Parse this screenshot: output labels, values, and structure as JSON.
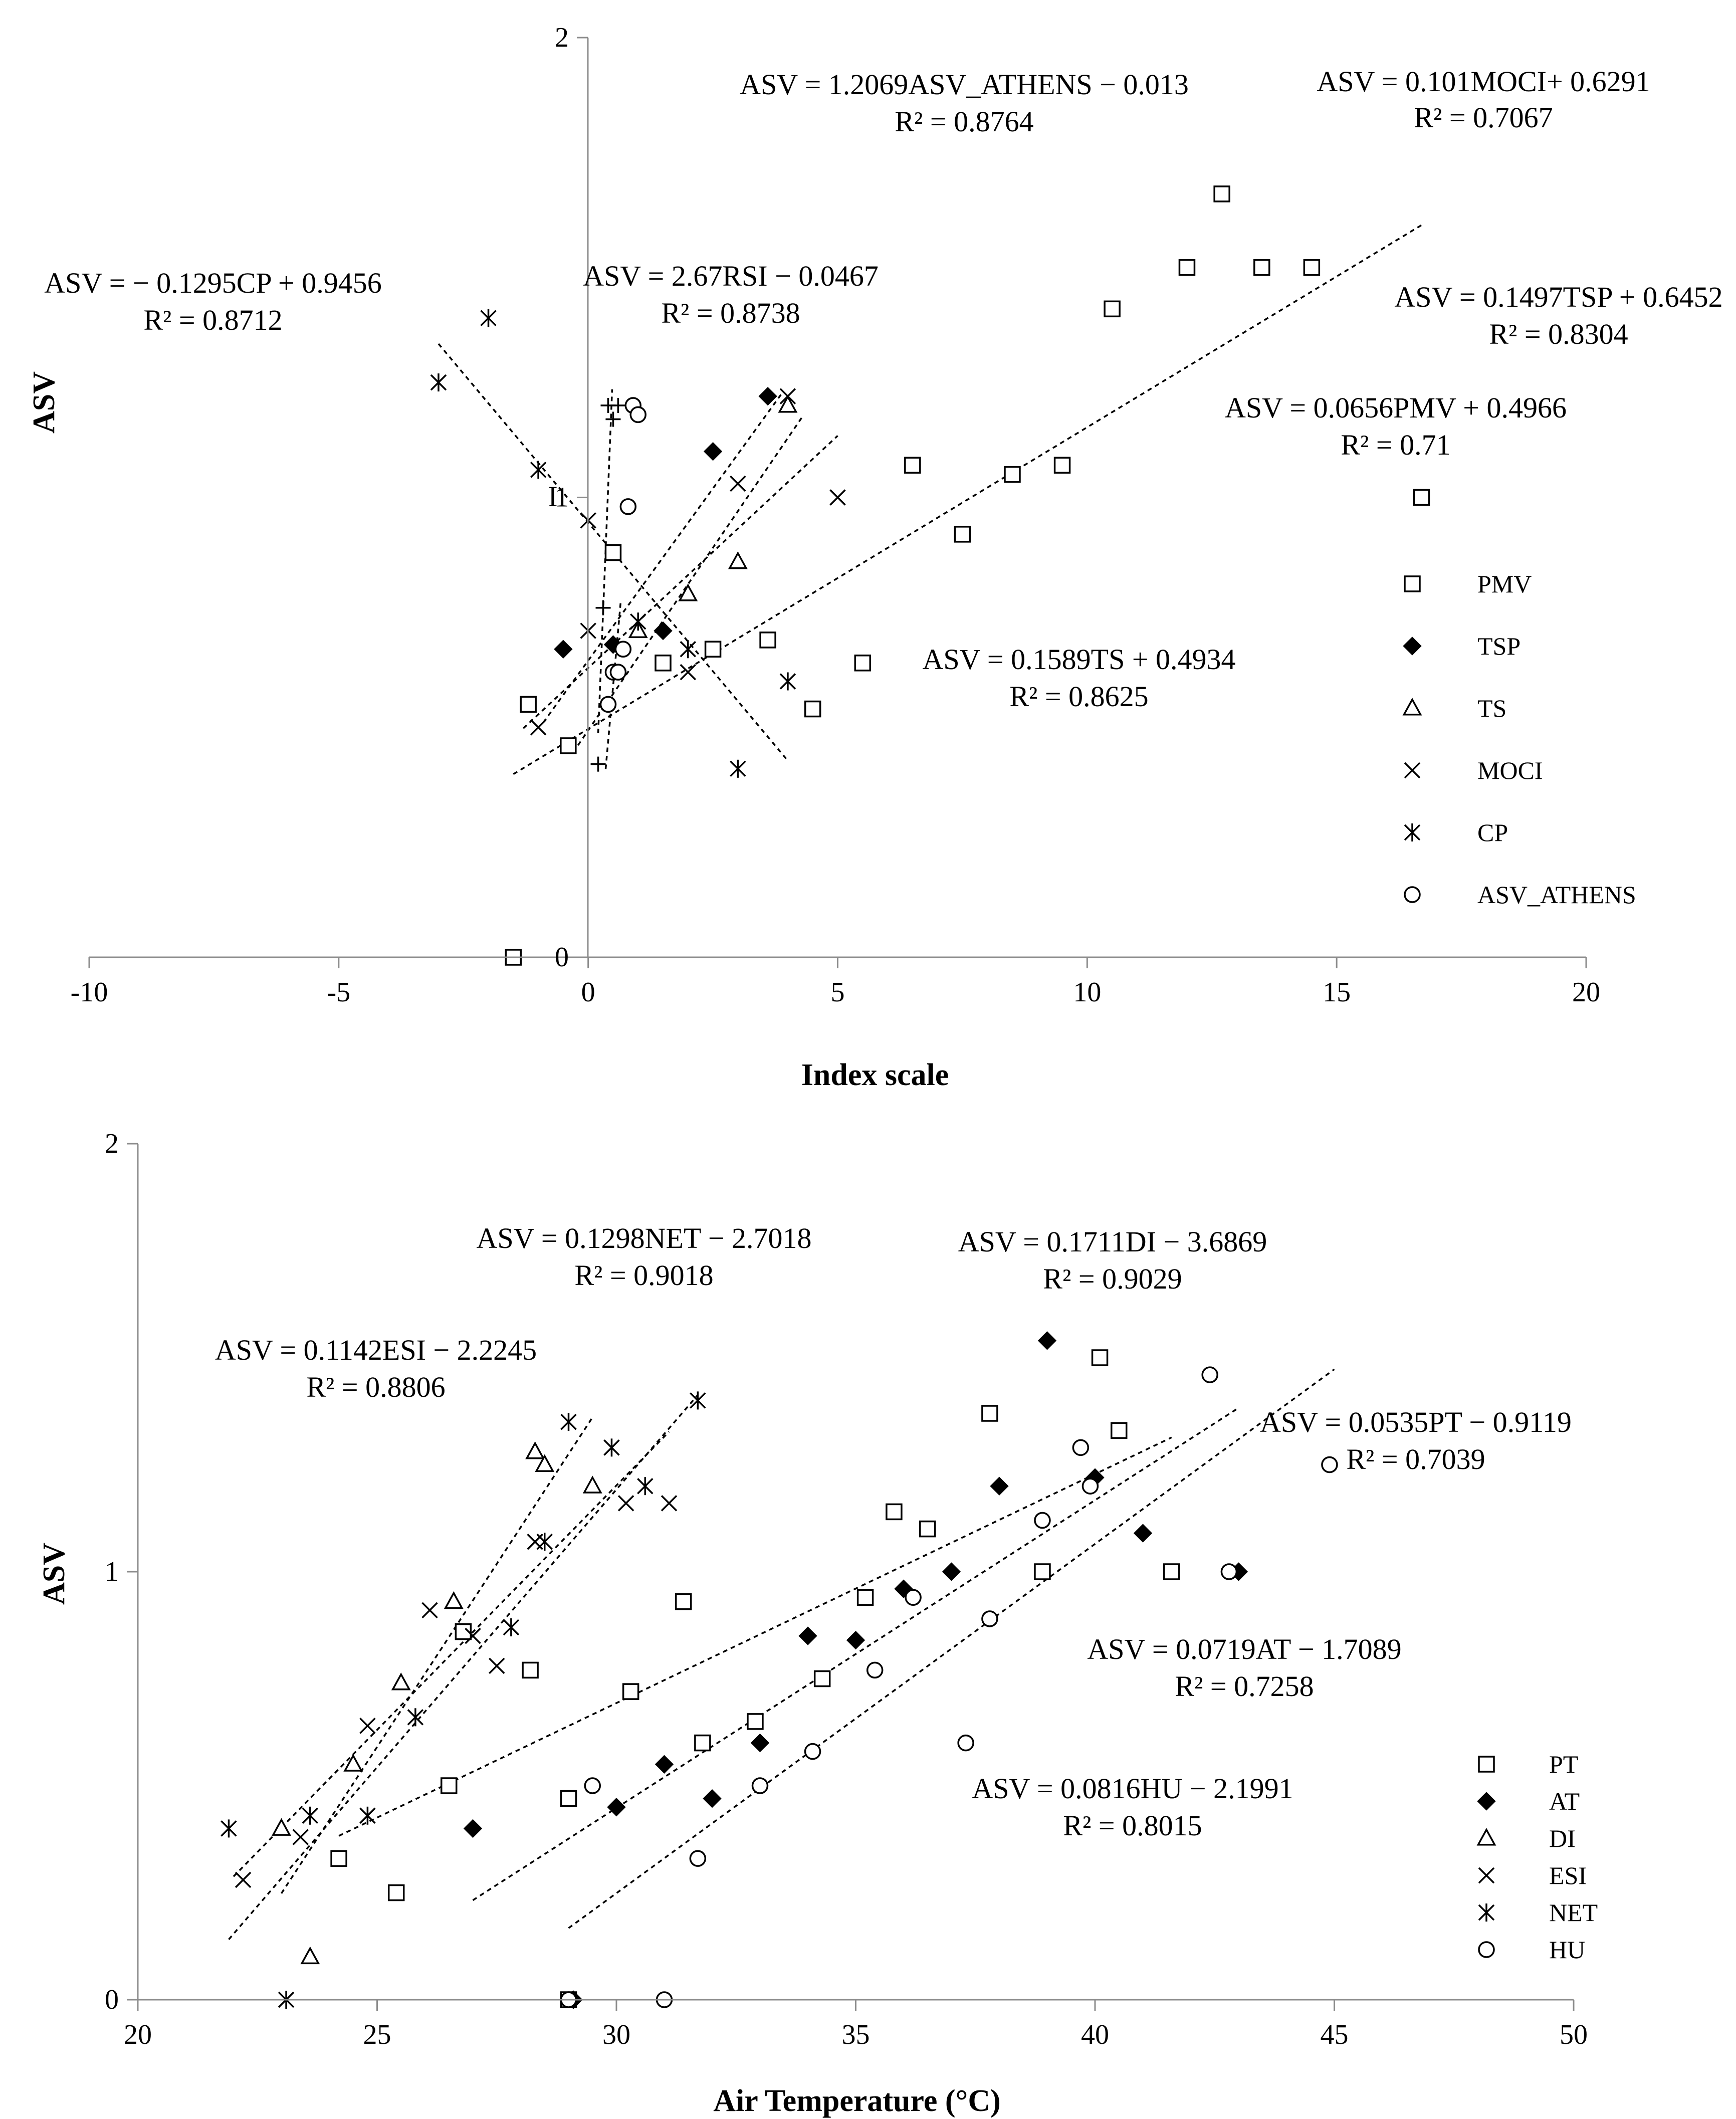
{
  "chart_data": [
    {
      "type": "scatter",
      "title": "",
      "xlabel": "Index scale",
      "ylabel": "ASV",
      "xlim": [
        -10,
        20
      ],
      "ylim": [
        0,
        2
      ],
      "xticks": [
        "-10",
        "-5",
        "0",
        "5",
        "10",
        "15",
        "20"
      ],
      "yticks": [
        "0",
        "1",
        "2"
      ],
      "legend_position": "right",
      "series": [
        {
          "name": "PMV",
          "marker": "square",
          "points": [
            [
              -1.5,
              0
            ],
            [
              -1.2,
              0.55
            ],
            [
              -0.4,
              0.46
            ],
            [
              0.5,
              0.88
            ],
            [
              1.5,
              0.64
            ],
            [
              2.5,
              0.67
            ],
            [
              3.6,
              0.69
            ],
            [
              4.5,
              0.54
            ],
            [
              5.5,
              0.64
            ],
            [
              6.5,
              1.07
            ],
            [
              7.5,
              0.92
            ],
            [
              8.5,
              1.05
            ],
            [
              9.5,
              1.07
            ],
            [
              10.5,
              1.41
            ],
            [
              12,
              1.5
            ],
            [
              12.7,
              1.66
            ],
            [
              13.5,
              1.5
            ],
            [
              14.5,
              1.5
            ],
            [
              16.7,
              1.0
            ]
          ]
        },
        {
          "name": "TSP",
          "marker": "diamond",
          "points": [
            [
              -0.5,
              0.67
            ],
            [
              0.5,
              0.68
            ],
            [
              1.5,
              0.71
            ],
            [
              2.5,
              1.1
            ],
            [
              3.6,
              1.22
            ]
          ]
        },
        {
          "name": "TS",
          "marker": "triangle",
          "points": [
            [
              1,
              0.71
            ],
            [
              2,
              0.79
            ],
            [
              3,
              0.86
            ],
            [
              4,
              1.2
            ]
          ]
        },
        {
          "name": "MOCI",
          "marker": "x",
          "points": [
            [
              -1,
              0.5
            ],
            [
              0,
              0.71
            ],
            [
              0,
              0.95
            ],
            [
              2,
              0.62
            ],
            [
              3,
              1.03
            ],
            [
              4,
              1.22
            ],
            [
              5,
              1.0
            ]
          ]
        },
        {
          "name": "CP",
          "marker": "asterisk",
          "points": [
            [
              -3,
              1.25
            ],
            [
              -2,
              1.39
            ],
            [
              -1,
              1.06
            ],
            [
              1,
              0.73
            ],
            [
              2,
              0.67
            ],
            [
              3,
              0.41
            ],
            [
              4,
              0.6
            ]
          ]
        },
        {
          "name": "ASV_ATHENS",
          "marker": "circle",
          "points": [
            [
              0.4,
              0.55
            ],
            [
              0.5,
              0.62
            ],
            [
              0.6,
              0.62
            ],
            [
              0.7,
              0.67
            ],
            [
              0.8,
              0.98
            ],
            [
              0.9,
              1.2
            ],
            [
              1.0,
              1.18
            ]
          ]
        }
      ],
      "extra_points": {
        "marker": "plus",
        "points": [
          [
            0.2,
            0.42
          ],
          [
            0.3,
            0.76
          ],
          [
            0.4,
            1.2
          ],
          [
            0.5,
            1.17
          ],
          [
            0.6,
            1.2
          ]
        ]
      },
      "trendlines": [
        {
          "series": "PMV",
          "equation": "ASV = 0.0656PMV + 0.4966",
          "r2": "R² = 0.71",
          "x_range": [
            -1.5,
            16.7
          ]
        },
        {
          "series": "TSP",
          "equation": "ASV = 0.1497TSP + 0.6452",
          "r2": "R² = 0.8304",
          "x_range": [
            -0.9,
            3.9
          ]
        },
        {
          "series": "TS",
          "equation": "ASV = 0.1589TS + 0.4934",
          "r2": "R² = 0.8625",
          "x_range": [
            -0.3,
            4.3
          ]
        },
        {
          "series": "MOCI",
          "equation": "ASV = 0.101MOCI+ 0.6291",
          "r2": "R² = 0.7067",
          "x_range": [
            -1.3,
            5
          ]
        },
        {
          "series": "CP",
          "equation": "ASV = − 0.1295CP + 0.9456",
          "r2": "R² = 0.8712",
          "x_range": [
            -3,
            4
          ]
        },
        {
          "series": "ASV_ATHENS",
          "equation": "ASV = 1.2069ASV_ATHENS − 0.013",
          "r2": "R² = 0.8764",
          "x_range": [
            0.35,
            0.65
          ]
        },
        {
          "series": "RSI",
          "equation": "ASV = 2.67RSI − 0.0467",
          "r2": "R² = 0.8738",
          "x_range": [
            0.2,
            0.48
          ]
        }
      ],
      "annotations": [
        "I"
      ]
    },
    {
      "type": "scatter",
      "title": "",
      "xlabel": "Air Temperature (°C)",
      "ylabel": "ASV",
      "xlim": [
        20,
        50
      ],
      "ylim": [
        0,
        2
      ],
      "xticks": [
        "20",
        "25",
        "30",
        "35",
        "40",
        "45",
        "50"
      ],
      "yticks": [
        "0",
        "1",
        "2"
      ],
      "legend_position": "bottom-right",
      "series": [
        {
          "name": "PT",
          "marker": "square",
          "points": [
            [
              24.2,
              0.33
            ],
            [
              25.4,
              0.25
            ],
            [
              26.5,
              0.5
            ],
            [
              26.8,
              0.86
            ],
            [
              28.2,
              0.77
            ],
            [
              29,
              0.47
            ],
            [
              29,
              0
            ],
            [
              30.3,
              0.72
            ],
            [
              31.4,
              0.93
            ],
            [
              31.8,
              0.6
            ],
            [
              32.9,
              0.65
            ],
            [
              34.3,
              0.75
            ],
            [
              35.2,
              0.94
            ],
            [
              35.8,
              1.14
            ],
            [
              36.5,
              1.1
            ],
            [
              37.8,
              1.37
            ],
            [
              38.9,
              1.0
            ],
            [
              40.1,
              1.5
            ],
            [
              40.5,
              1.33
            ],
            [
              41.6,
              1.0
            ]
          ]
        },
        {
          "name": "AT",
          "marker": "diamond",
          "points": [
            [
              27,
              0.4
            ],
            [
              29.1,
              0
            ],
            [
              30,
              0.45
            ],
            [
              31,
              0.55
            ],
            [
              32,
              0.47
            ],
            [
              33,
              0.6
            ],
            [
              34,
              0.85
            ],
            [
              35,
              0.84
            ],
            [
              36,
              0.96
            ],
            [
              37,
              1.0
            ],
            [
              38,
              1.2
            ],
            [
              39,
              1.54
            ],
            [
              40,
              1.22
            ],
            [
              41,
              1.09
            ],
            [
              43,
              1.0
            ]
          ]
        },
        {
          "name": "DI",
          "marker": "triangle",
          "points": [
            [
              23,
              0.4
            ],
            [
              23.6,
              0.1
            ],
            [
              24.5,
              0.55
            ],
            [
              25.5,
              0.74
            ],
            [
              26.6,
              0.93
            ],
            [
              28.3,
              1.28
            ],
            [
              28.5,
              1.25
            ],
            [
              29.5,
              1.2
            ]
          ]
        },
        {
          "name": "ESI",
          "marker": "x",
          "points": [
            [
              22.2,
              0.28
            ],
            [
              23.4,
              0.38
            ],
            [
              24.8,
              0.64
            ],
            [
              26.1,
              0.91
            ],
            [
              27,
              0.85
            ],
            [
              27.5,
              0.78
            ],
            [
              28.3,
              1.07
            ],
            [
              30.2,
              1.16
            ],
            [
              31.1,
              1.16
            ]
          ]
        },
        {
          "name": "NET",
          "marker": "asterisk",
          "points": [
            [
              21.9,
              0.4
            ],
            [
              23.1,
              0
            ],
            [
              23.6,
              0.43
            ],
            [
              24.8,
              0.43
            ],
            [
              25.8,
              0.66
            ],
            [
              27.8,
              0.87
            ],
            [
              28.5,
              1.07
            ],
            [
              29,
              1.35
            ],
            [
              29.9,
              1.29
            ],
            [
              30.6,
              1.2
            ],
            [
              31.7,
              1.4
            ]
          ]
        },
        {
          "name": "HU",
          "marker": "circle",
          "points": [
            [
              29,
              0
            ],
            [
              29.5,
              0.5
            ],
            [
              31,
              0
            ],
            [
              31.7,
              0.33
            ],
            [
              33,
              0.5
            ],
            [
              34.1,
              0.58
            ],
            [
              35.4,
              0.77
            ],
            [
              36.2,
              0.94
            ],
            [
              37.3,
              0.6
            ],
            [
              37.8,
              0.89
            ],
            [
              38.9,
              1.12
            ],
            [
              39.7,
              1.29
            ],
            [
              39.9,
              1.2
            ],
            [
              42.4,
              1.46
            ],
            [
              42.8,
              1.0
            ],
            [
              44.9,
              1.25
            ]
          ]
        }
      ],
      "trendlines": [
        {
          "series": "PT",
          "equation": "ASV = 0.0535PT − 0.9119",
          "r2": "R² = 0.7039",
          "x_range": [
            24.2,
            41.6
          ]
        },
        {
          "series": "AT",
          "equation": "ASV = 0.0719AT − 1.7089",
          "r2": "R² = 0.7258",
          "x_range": [
            27,
            43
          ]
        },
        {
          "series": "DI",
          "equation": "ASV = 0.1711DI − 3.6869",
          "r2": "R² = 0.9029",
          "x_range": [
            23,
            29.5
          ]
        },
        {
          "series": "ESI",
          "equation": "ASV = 0.1142ESI − 2.2245",
          "r2": "R² = 0.8806",
          "x_range": [
            22,
            31.1
          ]
        },
        {
          "series": "NET",
          "equation": "ASV = 0.1298NET − 2.7018",
          "r2": "R² = 0.9018",
          "x_range": [
            21.9,
            31.7
          ]
        },
        {
          "series": "HU",
          "equation": "ASV = 0.0816HU − 2.1991",
          "r2": "R² = 0.8015",
          "x_range": [
            29,
            45
          ]
        }
      ]
    }
  ]
}
